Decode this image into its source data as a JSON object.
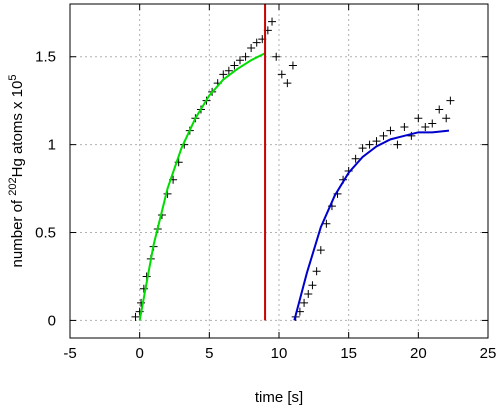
{
  "chart_data": {
    "type": "scatter",
    "title": "",
    "xlabel": "time [s]",
    "ylabel_parts": {
      "prefix": "number of",
      "isotope_mass": "202",
      "element": "Hg atoms x 10",
      "exponent": "5"
    },
    "xlim": [
      -5,
      25
    ],
    "ylim": [
      -0.1,
      1.8
    ],
    "xticks": [
      -5,
      0,
      5,
      10,
      15,
      20,
      25
    ],
    "xtick_labels": [
      "-5",
      "0",
      "5",
      "10",
      "15",
      "20",
      "25"
    ],
    "yticks": [
      0,
      0.5,
      1,
      1.5
    ],
    "ytick_labels": [
      "0",
      "0.5",
      "1",
      "1.5"
    ],
    "grid": true,
    "marker": "+",
    "colors": {
      "points": "#000000",
      "fit1": "#00dd00",
      "fit2": "#0000cc",
      "vline": "#cc0000",
      "grid": "#b0b0b0"
    },
    "series": [
      {
        "kind": "points",
        "x": [
          -0.3,
          0,
          0.1,
          0.3,
          0.5,
          0.8,
          1.0,
          1.3,
          1.6,
          2.0,
          2.4,
          2.8,
          3.2,
          3.6,
          4.0,
          4.4,
          4.8,
          5.2,
          5.6,
          6.0,
          6.4,
          6.8,
          7.2,
          7.6,
          8.0,
          8.4,
          8.8,
          9.2,
          9.5,
          9.8,
          10.2,
          10.6,
          11.0,
          11.2,
          11.5,
          11.8,
          12.1,
          12.4,
          12.7,
          13.0,
          13.4,
          13.8,
          14.2,
          14.6,
          15.0,
          15.5,
          16.0,
          16.5,
          17.0,
          17.5,
          18.0,
          18.5,
          19.0,
          19.5,
          20.0,
          20.5,
          21.0,
          21.5,
          22.0,
          22.3
        ],
        "y": [
          0.02,
          0.05,
          0.1,
          0.18,
          0.25,
          0.35,
          0.42,
          0.52,
          0.6,
          0.72,
          0.8,
          0.9,
          1.0,
          1.08,
          1.15,
          1.2,
          1.25,
          1.3,
          1.35,
          1.4,
          1.42,
          1.45,
          1.48,
          1.5,
          1.55,
          1.58,
          1.6,
          1.65,
          1.7,
          1.5,
          1.4,
          1.35,
          1.45,
          0.02,
          0.05,
          0.1,
          0.15,
          0.2,
          0.28,
          0.4,
          0.55,
          0.65,
          0.72,
          0.8,
          0.85,
          0.92,
          0.98,
          1.0,
          1.02,
          1.05,
          1.08,
          1.0,
          1.1,
          1.05,
          1.15,
          1.1,
          1.12,
          1.2,
          1.15,
          1.25
        ]
      },
      {
        "kind": "fit",
        "x": [
          0,
          1,
          2,
          3,
          4,
          5,
          6,
          7,
          8,
          9
        ],
        "y": [
          0,
          0.43,
          0.75,
          0.98,
          1.15,
          1.28,
          1.37,
          1.43,
          1.48,
          1.52
        ]
      },
      {
        "kind": "fit",
        "x": [
          11.1,
          12,
          13,
          14,
          15,
          16,
          17,
          18,
          19,
          20,
          21,
          22.2
        ],
        "y": [
          0,
          0.27,
          0.53,
          0.71,
          0.84,
          0.93,
          0.99,
          1.03,
          1.05,
          1.07,
          1.07,
          1.08
        ]
      },
      {
        "kind": "vline",
        "x": [
          9,
          9
        ],
        "y": [
          0,
          1.8
        ]
      }
    ]
  }
}
